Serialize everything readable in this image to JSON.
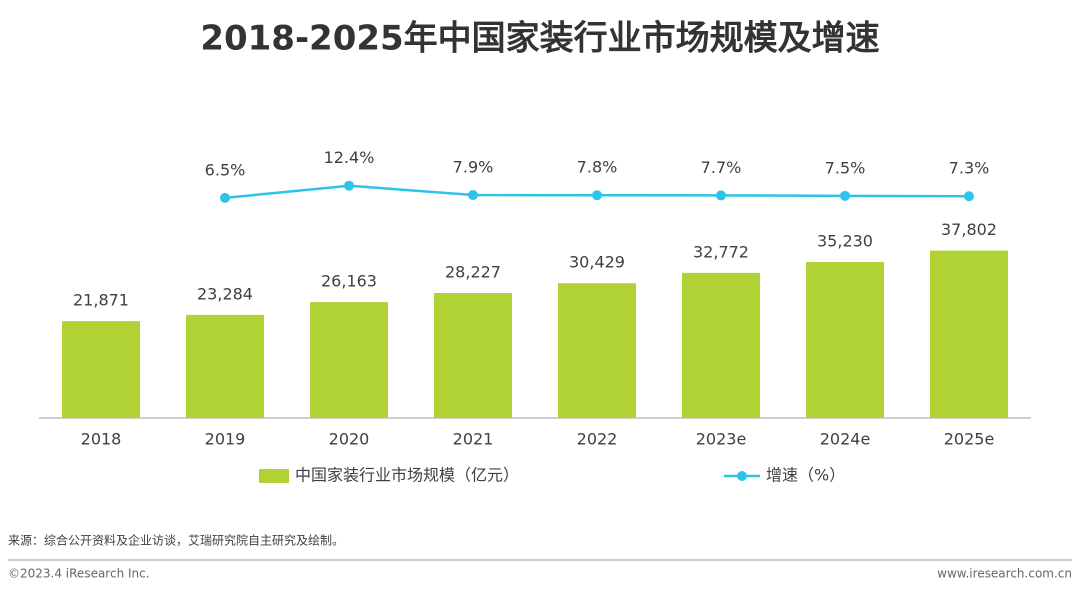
{
  "chart_data": {
    "type": "bar-line",
    "title": "2018-2025年中国家装行业市场规模及增速",
    "categories": [
      "2018",
      "2019",
      "2020",
      "2021",
      "2022",
      "2023e",
      "2024e",
      "2025e"
    ],
    "series": [
      {
        "name": "中国家装行业市场规模（亿元）",
        "type": "bar",
        "color": "#b0d235",
        "values": [
          21871,
          23284,
          26163,
          28227,
          30429,
          32772,
          35230,
          37802
        ],
        "value_labels": [
          "21,871",
          "23,284",
          "26,163",
          "28,227",
          "30,429",
          "32,772",
          "35,230",
          "37,802"
        ]
      },
      {
        "name": "增速（%）",
        "type": "line",
        "axis": "y2",
        "color": "#2ec4ea",
        "values": [
          null,
          6.5,
          12.4,
          7.9,
          7.8,
          7.7,
          7.5,
          7.3
        ],
        "value_labels": [
          null,
          "6.5%",
          "12.4%",
          "7.9%",
          "7.8%",
          "7.7%",
          "7.5%",
          "7.3%"
        ]
      }
    ],
    "ylim": [
      0,
      70000
    ],
    "y2lim": [
      -100,
      50
    ],
    "grid": false,
    "legend": "bottom"
  },
  "footer": {
    "source": "来源：综合公开资料及企业访谈，艾瑞研究院自主研究及绘制。",
    "copyright": "©2023.4 iResearch Inc.",
    "website": "www.iresearch.com.cn"
  }
}
